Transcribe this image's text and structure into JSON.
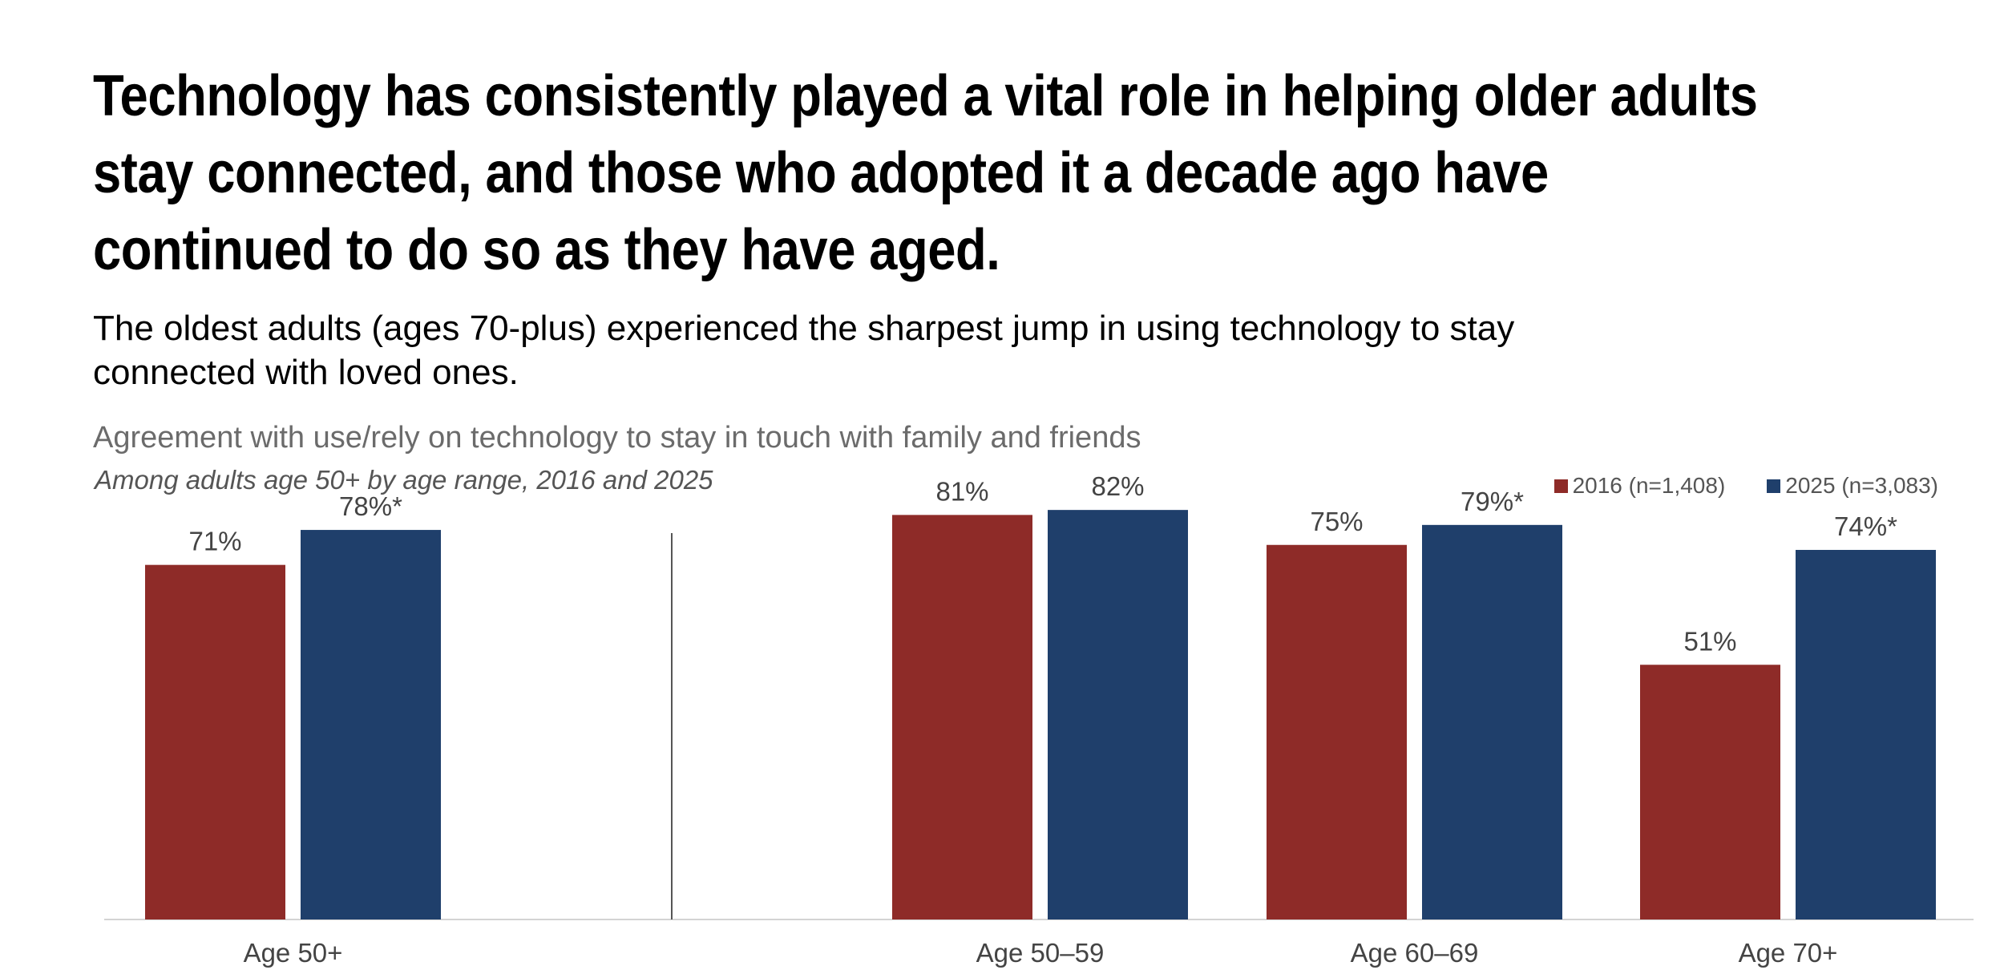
{
  "headline": "Technology has consistently played a vital role in helping older adults stay connected, and those who adopted it a decade ago have continued to do so as they have aged.",
  "subhead": "The oldest adults (ages 70-plus) experienced the sharpest jump in using technology to stay connected with loved ones.",
  "colors": {
    "series_2016": "#8e2b28",
    "series_2025": "#1f3f6b",
    "axis": "#d3d3d3",
    "divider": "#555555",
    "label": "#444444"
  },
  "chart_data": {
    "type": "bar",
    "title": "Agreement with use/rely on technology to stay in touch with family and friends",
    "subtitle": "Among adults age 50+ by age range, 2016 and 2025",
    "categories": [
      "Age 50+",
      "Age 50–59",
      "Age 60–69",
      "Age 70+"
    ],
    "series": [
      {
        "name": "2016 (n=1,408)",
        "values": [
          71,
          81,
          75,
          51
        ],
        "labels": [
          "71%",
          "81%",
          "75%",
          "51%"
        ]
      },
      {
        "name": "2025 (n=3,083)",
        "values": [
          78,
          82,
          79,
          74
        ],
        "labels": [
          "78%*",
          "82%",
          "79%*",
          "74%*"
        ]
      }
    ],
    "ylim": [
      0,
      100
    ],
    "xlabel": "",
    "ylabel": "",
    "grid": false,
    "legend_position": "top-right"
  }
}
